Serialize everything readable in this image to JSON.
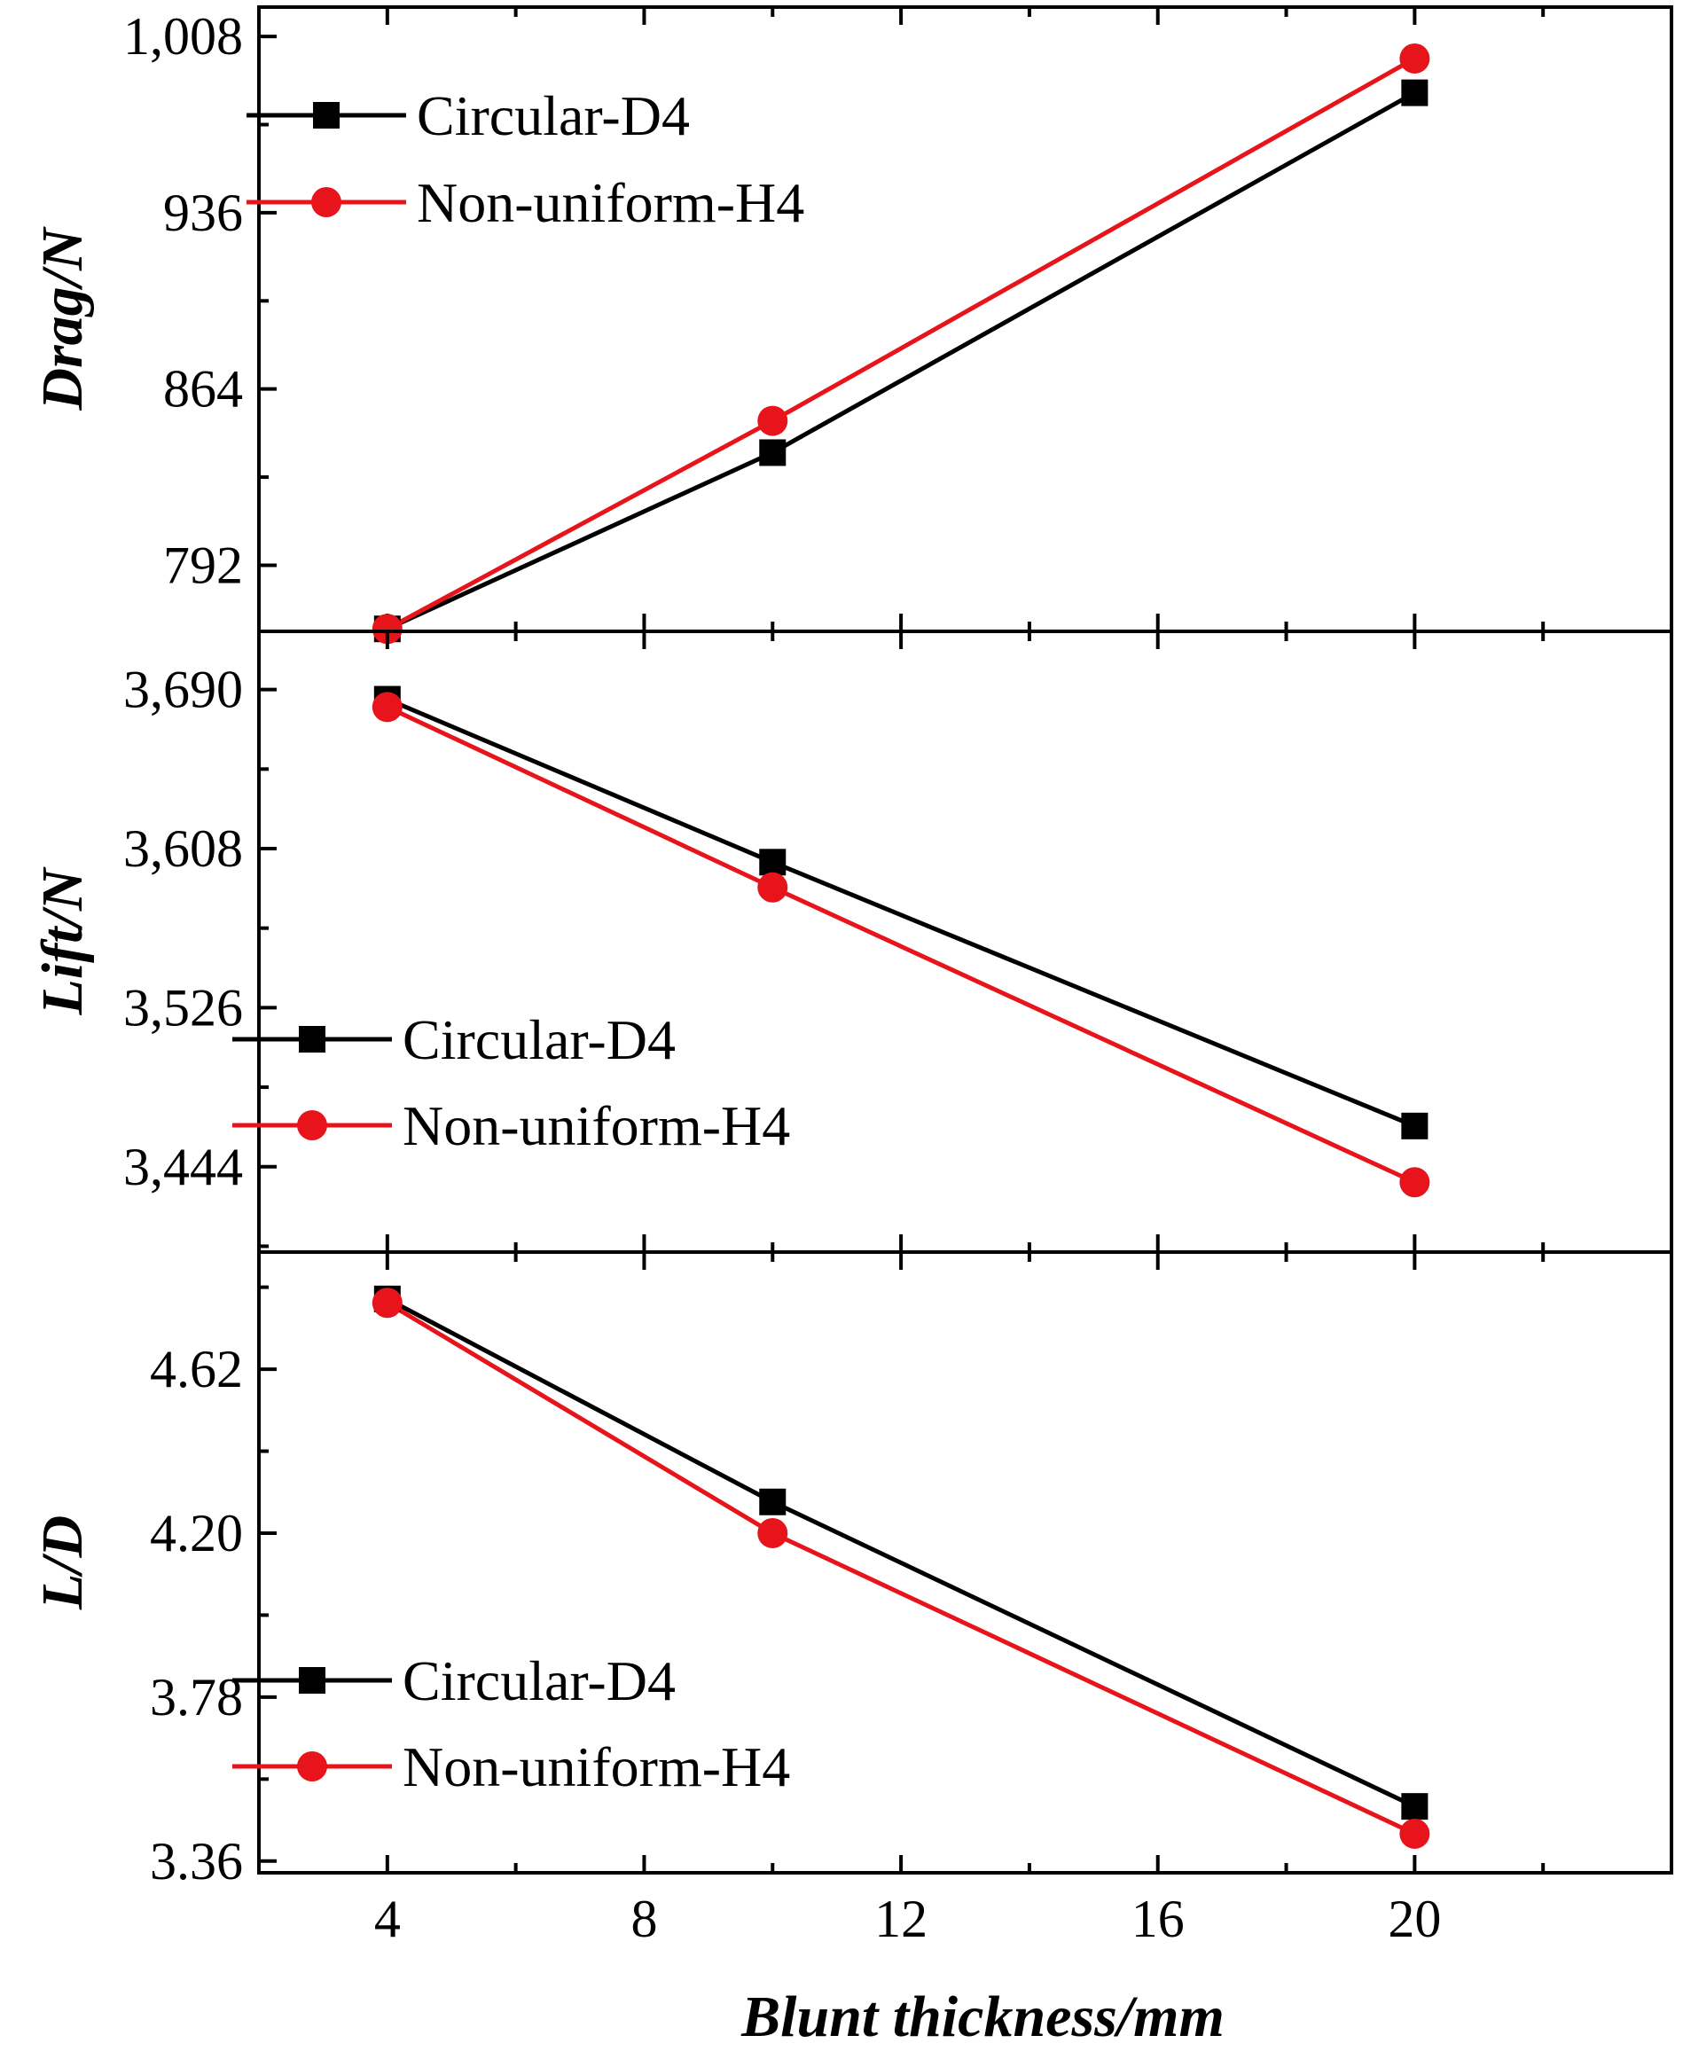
{
  "chart_data": [
    {
      "type": "line",
      "panel": "top",
      "ylabel": "Drag/N",
      "xlabel": "",
      "x": [
        4,
        10,
        20
      ],
      "xlim": [
        2,
        24
      ],
      "ylim": [
        765,
        1020
      ],
      "yticks": [
        792,
        864,
        936,
        1008
      ],
      "ytick_labels": [
        "792",
        "864",
        "936",
        "1,008"
      ],
      "legend_position": "top-left",
      "series": [
        {
          "name": "Circular-D4",
          "marker": "square",
          "color": "#000000",
          "values": [
            766,
            838,
            985
          ]
        },
        {
          "name": "Non-uniform-H4",
          "marker": "circle",
          "color": "#e8141b",
          "values": [
            766,
            851,
            999
          ]
        }
      ]
    },
    {
      "type": "line",
      "panel": "middle",
      "ylabel": "Lift/N",
      "xlabel": "",
      "x": [
        4,
        10,
        20
      ],
      "xlim": [
        2,
        24
      ],
      "ylim": [
        3400,
        3720
      ],
      "yticks": [
        3444,
        3526,
        3608,
        3690
      ],
      "ytick_labels": [
        "3,444",
        "3,526",
        "3,608",
        "3,690"
      ],
      "legend_position": "bottom-left",
      "series": [
        {
          "name": "Circular-D4",
          "marker": "square",
          "color": "#000000",
          "values": [
            3685,
            3601,
            3465
          ]
        },
        {
          "name": "Non-uniform-H4",
          "marker": "circle",
          "color": "#e8141b",
          "values": [
            3681,
            3588,
            3436
          ]
        }
      ]
    },
    {
      "type": "line",
      "panel": "bottom",
      "ylabel": "L/D",
      "xlabel": "Blunt thickness/mm",
      "x": [
        4,
        10,
        20
      ],
      "xlim": [
        2,
        24
      ],
      "ylim": [
        3.33,
        4.92
      ],
      "xticks": [
        4,
        8,
        12,
        16,
        20
      ],
      "xtick_labels": [
        "4",
        "8",
        "12",
        "16",
        "20"
      ],
      "yticks": [
        3.36,
        3.78,
        4.2,
        4.62
      ],
      "ytick_labels": [
        "3.36",
        "3.78",
        "4.20",
        "4.62"
      ],
      "legend_position": "bottom-left",
      "series": [
        {
          "name": "Circular-D4",
          "marker": "square",
          "color": "#000000",
          "values": [
            4.8,
            4.28,
            3.5
          ]
        },
        {
          "name": "Non-uniform-H4",
          "marker": "circle",
          "color": "#e8141b",
          "values": [
            4.79,
            4.2,
            3.43
          ]
        }
      ]
    }
  ]
}
